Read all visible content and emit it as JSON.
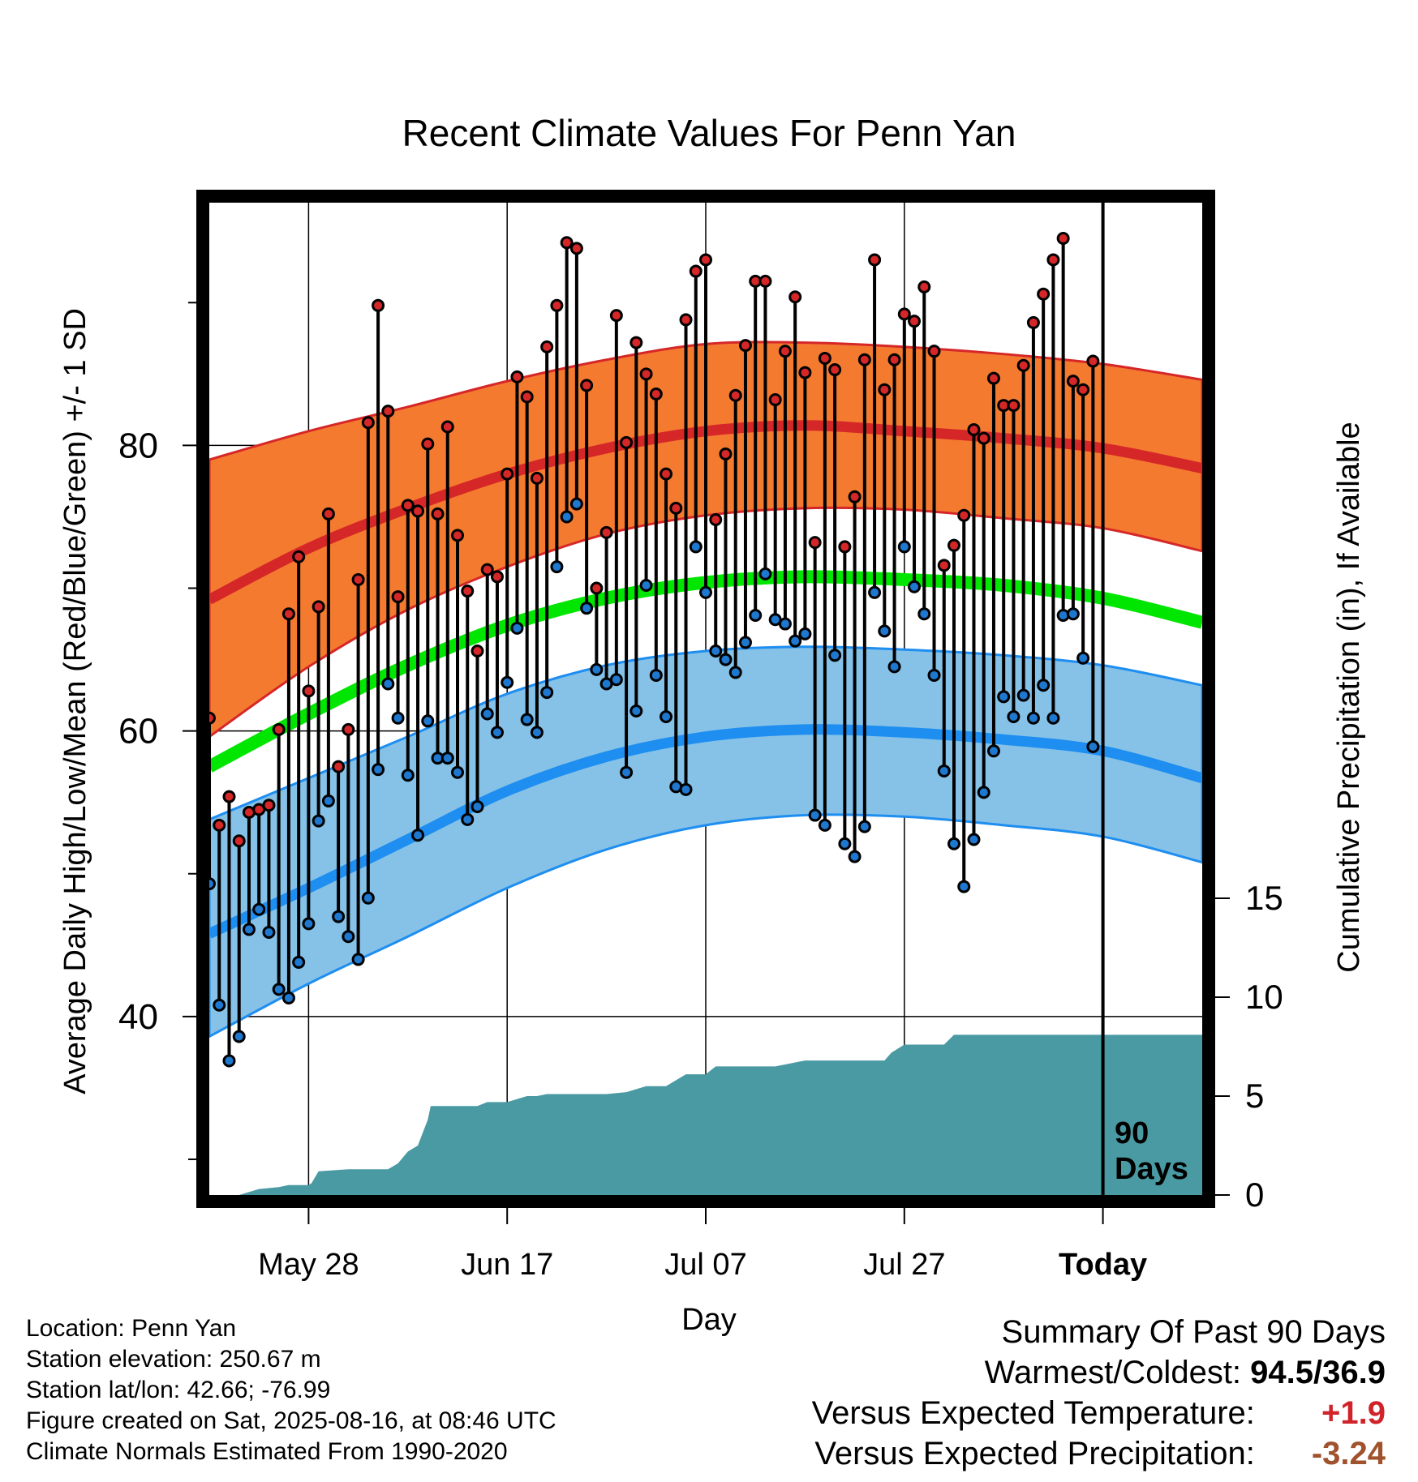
{
  "chart_data": {
    "type": "line",
    "title": "Recent Climate Values For Penn Yan",
    "xlabel": "Day",
    "ylabel": "Average Daily High/Low/Mean (Red/Blue/Green) +/- 1 SD",
    "y2label": "Cumulative Precipitation (in), If Available",
    "xlim": [
      0,
      100
    ],
    "ylim": [
      27.5,
      97
    ],
    "y2lim": [
      0,
      20
    ],
    "y_ticks": [
      40,
      60,
      80
    ],
    "y_minor_ticks": [
      30,
      50,
      70,
      90
    ],
    "y2_ticks": [
      0,
      5,
      10,
      15
    ],
    "x_ticks": [
      {
        "x": 10,
        "label": "May 28"
      },
      {
        "x": 30,
        "label": "Jun 17"
      },
      {
        "x": 50,
        "label": "Jul 07"
      },
      {
        "x": 70,
        "label": "Jul 27"
      },
      {
        "x": 90,
        "label": "Today"
      }
    ],
    "today_marker": {
      "x": 90,
      "label_line1": "90",
      "label_line2": "Days"
    },
    "grid": true,
    "colors": {
      "high_band": "#f47a30",
      "high_line": "#d62728",
      "low_band": "#86c2e8",
      "low_line": "#1e8ef0",
      "mean_line": "#00e600",
      "precip": "#4a9aa3",
      "high_marker": "#d62728",
      "low_marker": "#1e78d0"
    },
    "normals": {
      "x": [
        0,
        10,
        20,
        30,
        40,
        50,
        60,
        70,
        80,
        90,
        100
      ],
      "high_mean": [
        69.2,
        72.8,
        75.6,
        78.0,
        79.8,
        81.0,
        81.4,
        81.0,
        80.5,
        79.8,
        78.4
      ],
      "high_upper": [
        79.0,
        81.0,
        82.7,
        84.5,
        86.0,
        87.1,
        87.2,
        86.9,
        86.4,
        85.7,
        84.6
      ],
      "high_lower": [
        59.6,
        64.5,
        68.5,
        71.5,
        73.8,
        75.1,
        75.6,
        75.5,
        74.9,
        74.2,
        72.6
      ],
      "mean": [
        57.5,
        61.2,
        64.6,
        67.4,
        69.3,
        70.4,
        70.8,
        70.6,
        70.2,
        69.3,
        67.6
      ],
      "low_mean": [
        45.8,
        49.0,
        52.4,
        55.8,
        58.2,
        59.6,
        60.1,
        59.9,
        59.4,
        58.6,
        56.7
      ],
      "low_upper": [
        53.8,
        56.7,
        59.6,
        62.6,
        64.6,
        65.6,
        65.9,
        65.7,
        65.3,
        64.6,
        63.2
      ],
      "low_lower": [
        38.6,
        42.3,
        45.6,
        49.0,
        51.7,
        53.4,
        54.1,
        54.0,
        53.4,
        52.6,
        50.8
      ]
    },
    "daily": {
      "highs": [
        60.9,
        53.4,
        55.4,
        52.3,
        54.3,
        54.5,
        54.8,
        60.1,
        68.2,
        72.2,
        62.8,
        68.7,
        75.2,
        57.5,
        60.1,
        70.6,
        81.6,
        89.8,
        82.4,
        69.4,
        75.8,
        75.4,
        80.1,
        75.2,
        81.3,
        73.7,
        69.8,
        65.6,
        71.3,
        70.8,
        78.0,
        84.8,
        83.4,
        77.7,
        86.9,
        89.8,
        94.2,
        93.8,
        84.2,
        70.0,
        73.9,
        89.1,
        80.2,
        87.2,
        85.0,
        83.6,
        78.0,
        75.6,
        88.8,
        92.2,
        93.0,
        74.8,
        79.4,
        83.5,
        87.0,
        91.5,
        91.5,
        83.2,
        86.6,
        90.4,
        85.1,
        73.2,
        86.1,
        85.3,
        72.9,
        76.4,
        86.0,
        93.0,
        83.9,
        86.0,
        89.2,
        88.7,
        91.1,
        86.6,
        71.6,
        73.0,
        75.1,
        81.1,
        80.5,
        84.7,
        82.8,
        82.8,
        85.6,
        88.6,
        90.6,
        93.0,
        94.5,
        84.5,
        83.9,
        85.9
      ],
      "lows": [
        49.3,
        40.8,
        36.9,
        38.6,
        46.1,
        47.5,
        45.9,
        41.9,
        41.3,
        43.8,
        46.5,
        53.7,
        55.1,
        47.0,
        45.6,
        44.0,
        48.3,
        57.3,
        63.3,
        60.9,
        56.9,
        52.7,
        60.7,
        58.1,
        58.1,
        57.1,
        53.8,
        54.7,
        61.2,
        59.9,
        63.4,
        67.2,
        60.8,
        59.9,
        62.7,
        71.5,
        75.0,
        75.9,
        68.6,
        64.3,
        63.3,
        63.6,
        57.1,
        61.4,
        70.2,
        63.9,
        61.0,
        56.1,
        55.9,
        72.9,
        69.7,
        65.6,
        65.0,
        64.1,
        66.2,
        68.1,
        71.0,
        67.8,
        67.5,
        66.3,
        66.8,
        54.1,
        53.4,
        65.3,
        52.1,
        51.2,
        53.3,
        69.7,
        67.0,
        64.5,
        72.9,
        70.1,
        68.2,
        63.9,
        57.2,
        52.1,
        49.1,
        52.4,
        55.7,
        58.6,
        62.4,
        61.0,
        62.5,
        60.9,
        63.2,
        60.9,
        68.1,
        68.2,
        65.1,
        58.9
      ]
    },
    "precip_cumulative": {
      "x": [
        0,
        3,
        5,
        7,
        8,
        10,
        10.3,
        11,
        14,
        17,
        18,
        19,
        20,
        21,
        22,
        22.3,
        23,
        26,
        27,
        28,
        30,
        32,
        33,
        34,
        40,
        42,
        44,
        46,
        48,
        50,
        51,
        56,
        57,
        58,
        59,
        60,
        63,
        68,
        68.7,
        70,
        72,
        74,
        75,
        80,
        90,
        100
      ],
      "y": [
        0,
        0,
        0.3,
        0.4,
        0.5,
        0.5,
        0.6,
        1.2,
        1.3,
        1.3,
        1.3,
        1.6,
        2.2,
        2.5,
        3.8,
        4.5,
        4.5,
        4.5,
        4.5,
        4.7,
        4.7,
        5.0,
        5.0,
        5.1,
        5.1,
        5.2,
        5.5,
        5.5,
        6.1,
        6.1,
        6.5,
        6.5,
        6.5,
        6.6,
        6.7,
        6.8,
        6.8,
        6.8,
        7.2,
        7.6,
        7.6,
        7.6,
        8.1,
        8.1,
        8.1,
        8.1
      ]
    }
  },
  "footer": {
    "location": "Location: Penn Yan",
    "elevation": "Station elevation: 250.67 m",
    "latlon": "Station lat/lon: 42.66; -76.99",
    "created": "Figure created on Sat, 2025-08-16, at 08:46 UTC",
    "normals": "Climate Normals Estimated From 1990-2020"
  },
  "summary": {
    "heading": "Summary Of Past 90 Days",
    "warm_cold_label": "Warmest/Coldest:",
    "warm_cold_value": "94.5/36.9",
    "temp_label": "Versus Expected Temperature:",
    "temp_value": "+1.9",
    "precip_label": "Versus Expected Precipitation:",
    "precip_value": "-3.24"
  }
}
